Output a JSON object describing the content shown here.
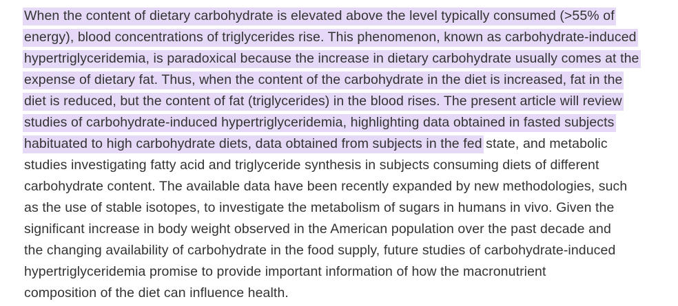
{
  "page": {
    "background": "#ffffff"
  },
  "paragraph": {
    "text_color": "#333333",
    "highlight_color": "#e6d9f7",
    "lines": [
      {
        "segments": [
          {
            "text": "When the content of dietary carbohydrate is elevated above the level typically consumed (>55% of",
            "highlighted": true
          }
        ]
      },
      {
        "segments": [
          {
            "text": "energy), blood concentrations of triglycerides rise. This phenomenon, known as carbohydrate-induced",
            "highlighted": true
          }
        ]
      },
      {
        "segments": [
          {
            "text": "hypertriglyceridemia, is paradoxical because the increase in dietary carbohydrate usually comes at the",
            "highlighted": true
          }
        ]
      },
      {
        "segments": [
          {
            "text": "expense of dietary fat. Thus, when the content of the carbohydrate in the diet is increased, fat in the",
            "highlighted": true
          }
        ]
      },
      {
        "segments": [
          {
            "text": "diet is reduced, but the content of fat (triglycerides) in the blood rises. The present article will review",
            "highlighted": true
          }
        ]
      },
      {
        "segments": [
          {
            "text": "studies of carbohydrate-induced hypertriglyceridemia, highlighting data obtained in fasted subjects",
            "highlighted": true
          }
        ]
      },
      {
        "segments": [
          {
            "text": "habituated to high carbohydrate diets, data obtained from subjects in the fed",
            "highlighted": true
          },
          {
            "text": " state, and metabolic",
            "highlighted": false
          }
        ]
      },
      {
        "segments": [
          {
            "text": "studies investigating fatty acid and triglyceride synthesis in subjects consuming diets of different",
            "highlighted": false
          }
        ]
      },
      {
        "segments": [
          {
            "text": "carbohydrate content. The available data have been recently expanded by new methodologies, such",
            "highlighted": false
          }
        ]
      },
      {
        "segments": [
          {
            "text": "as the use of stable isotopes, to investigate the metabolism of sugars in humans in vivo. Given the",
            "highlighted": false
          }
        ]
      },
      {
        "segments": [
          {
            "text": "significant increase in body weight observed in the American population over the past decade and",
            "highlighted": false
          }
        ]
      },
      {
        "segments": [
          {
            "text": "the changing availability of carbohydrate in the food supply, future studies of carbohydrate-induced",
            "highlighted": false
          }
        ]
      },
      {
        "segments": [
          {
            "text": "hypertriglyceridemia promise to provide important information of how the macronutrient",
            "highlighted": false
          }
        ]
      },
      {
        "segments": [
          {
            "text": "composition of the diet can influence health.",
            "highlighted": false
          }
        ]
      }
    ]
  }
}
